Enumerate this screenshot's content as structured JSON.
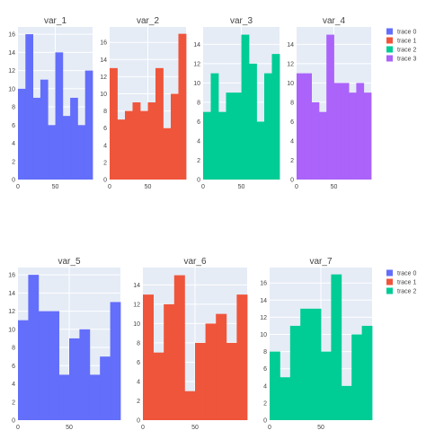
{
  "chart_data": {
    "type": "bar",
    "colors": [
      "#636efa",
      "#EF553B",
      "#00cc96",
      "#ab63fa"
    ],
    "bin_edges": [
      0,
      10,
      20,
      30,
      40,
      50,
      60,
      70,
      80,
      90,
      100
    ],
    "x_range": [
      0,
      100
    ],
    "x_ticks": [
      0,
      50
    ],
    "grid": true,
    "background": "#e5ecf6",
    "legend_placement": "right",
    "panels": [
      {
        "title": "var_1",
        "trace": 0,
        "ylim": [
          0,
          16.8
        ],
        "yticks": [
          0,
          2,
          4,
          6,
          8,
          10,
          12,
          14,
          16
        ],
        "values": [
          10,
          16,
          9,
          11,
          6,
          14,
          7,
          9,
          6,
          12
        ]
      },
      {
        "title": "var_2",
        "trace": 1,
        "ylim": [
          0,
          17.8
        ],
        "yticks": [
          0,
          2,
          4,
          6,
          8,
          10,
          12,
          14,
          16
        ],
        "values": [
          13,
          7,
          8,
          9,
          8,
          9,
          13,
          6,
          10,
          17
        ]
      },
      {
        "title": "var_3",
        "trace": 2,
        "ylim": [
          0,
          15.8
        ],
        "yticks": [
          0,
          2,
          4,
          6,
          8,
          10,
          12,
          14
        ],
        "values": [
          7,
          11,
          7,
          9,
          9,
          15,
          12,
          6,
          11,
          13
        ]
      },
      {
        "title": "var_4",
        "trace": 3,
        "ylim": [
          0,
          15.8
        ],
        "yticks": [
          0,
          2,
          4,
          6,
          8,
          10,
          12,
          14
        ],
        "values": [
          11,
          11,
          8,
          7,
          15,
          10,
          10,
          9,
          10,
          9
        ]
      },
      {
        "title": "var_5",
        "trace": 0,
        "ylim": [
          0,
          16.8
        ],
        "yticks": [
          0,
          2,
          4,
          6,
          8,
          10,
          12,
          14,
          16
        ],
        "values": [
          11,
          16,
          12,
          12,
          5,
          9,
          10,
          5,
          7,
          13
        ]
      },
      {
        "title": "var_6",
        "trace": 1,
        "ylim": [
          0,
          15.8
        ],
        "yticks": [
          0,
          2,
          4,
          6,
          8,
          10,
          12,
          14
        ],
        "values": [
          13,
          7,
          12,
          15,
          3,
          8,
          10,
          11,
          8,
          13
        ]
      },
      {
        "title": "var_7",
        "trace": 2,
        "ylim": [
          0,
          17.8
        ],
        "yticks": [
          0,
          2,
          4,
          6,
          8,
          10,
          12,
          14,
          16
        ],
        "values": [
          8,
          5,
          11,
          13,
          13,
          8,
          17,
          4,
          10,
          11
        ]
      }
    ],
    "legends": [
      {
        "entries": [
          {
            "name": "trace 0",
            "trace": 0
          },
          {
            "name": "trace 1",
            "trace": 1
          },
          {
            "name": "trace 2",
            "trace": 2
          },
          {
            "name": "trace 3",
            "trace": 3
          }
        ]
      },
      {
        "entries": [
          {
            "name": "trace 0",
            "trace": 0
          },
          {
            "name": "trace 1",
            "trace": 1
          },
          {
            "name": "trace 2",
            "trace": 2
          }
        ]
      }
    ]
  }
}
